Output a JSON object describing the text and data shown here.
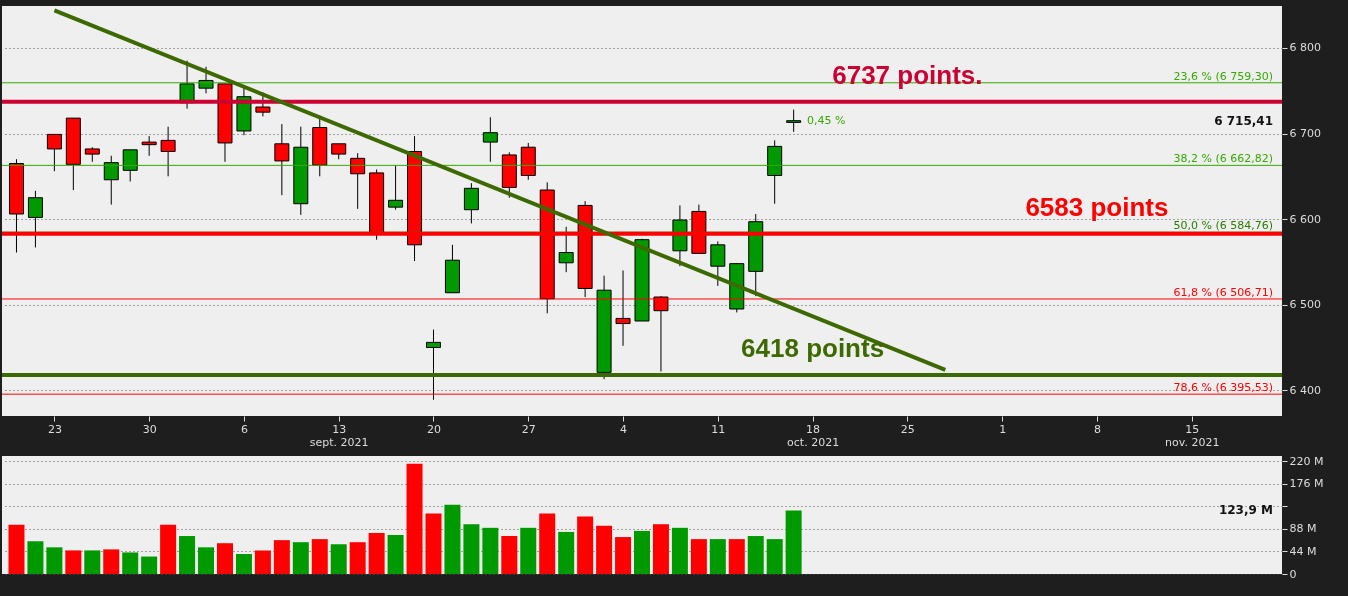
{
  "chart_data": [
    {
      "type": "candlestick",
      "categories": [
        null,
        null,
        "23",
        null,
        null,
        null,
        null,
        "30",
        null,
        null,
        null,
        null,
        "6",
        null,
        null,
        null,
        null,
        "13\nsept. 2021",
        null,
        null,
        null,
        null,
        "20",
        null,
        null,
        null,
        null,
        "27",
        null,
        null,
        null,
        null,
        "4",
        null,
        null,
        null,
        null,
        "11",
        null,
        null,
        null,
        null,
        "18\noct. 2021",
        null,
        null,
        null,
        null,
        "25",
        null,
        null,
        null,
        null,
        "1",
        null,
        null,
        null,
        null,
        "8",
        null,
        null,
        null,
        null,
        "15\nnov. 2021",
        null,
        null,
        null,
        null
      ],
      "ohlc": [
        [
          6665,
          6670,
          6561,
          6606
        ],
        [
          6602,
          6633,
          6567,
          6625
        ],
        [
          6699,
          6699,
          6656,
          6682
        ],
        [
          6718,
          6718,
          6634,
          6664
        ],
        [
          6682,
          6684,
          6667,
          6676
        ],
        [
          6646,
          6674,
          6617,
          6666
        ],
        [
          6657,
          6681,
          6644,
          6681
        ],
        [
          6690,
          6697,
          6674,
          6687
        ],
        [
          6692,
          6708,
          6650,
          6679
        ],
        [
          6736,
          6785,
          6729,
          6758
        ],
        [
          6753,
          6778,
          6747,
          6762
        ],
        [
          6758,
          6758,
          6667,
          6689
        ],
        [
          6703,
          6756,
          6698,
          6743
        ],
        [
          6731,
          6748,
          6720,
          6725
        ],
        [
          6688,
          6711,
          6628,
          6668
        ],
        [
          6618,
          6708,
          6605,
          6684
        ],
        [
          6707,
          6721,
          6650,
          6663
        ],
        [
          6688,
          6688,
          6670,
          6676
        ],
        [
          6671,
          6677,
          6612,
          6653
        ],
        [
          6654,
          6658,
          6576,
          6583
        ],
        [
          6614,
          6663,
          6611,
          6622
        ],
        [
          6679,
          6697,
          6551,
          6570
        ],
        [
          6450,
          6471,
          6389,
          6456
        ],
        [
          6514,
          6570,
          6514,
          6552
        ],
        [
          6611,
          6642,
          6595,
          6636
        ],
        [
          6690,
          6719,
          6667,
          6701
        ],
        [
          6675,
          6678,
          6625,
          6637
        ],
        [
          6684,
          6689,
          6646,
          6651
        ],
        [
          6634,
          6643,
          6490,
          6507
        ],
        [
          6549,
          6591,
          6538,
          6561
        ],
        [
          6616,
          6621,
          6509,
          6519
        ],
        [
          6421,
          6534,
          6413,
          6517
        ],
        [
          6484,
          6540,
          6452,
          6478
        ],
        [
          6481,
          6577,
          6481,
          6576
        ],
        [
          6509,
          6510,
          6422,
          6493
        ],
        [
          6563,
          6616,
          6545,
          6599
        ],
        [
          6609,
          6617,
          6560,
          6560
        ],
        [
          6545,
          6574,
          6522,
          6570
        ],
        [
          6495,
          6548,
          6491,
          6548
        ],
        [
          6539,
          6606,
          6510,
          6597
        ],
        [
          6651,
          6692,
          6618,
          6685
        ],
        [
          6713,
          6728,
          6702,
          6715
        ],
        null,
        null,
        null,
        null,
        null,
        null,
        null,
        null,
        null,
        null,
        null,
        null,
        null,
        null,
        null,
        null,
        null,
        null,
        null,
        null,
        null,
        null,
        null,
        null,
        null
      ],
      "colors": [
        "#ff0000",
        "#009900",
        "#ff0000",
        "#ff0000",
        "#ff0000",
        "#009900",
        "#009900",
        "#ff0000",
        "#ff0000",
        "#009900",
        "#009900",
        "#ff0000",
        "#009900",
        "#ff0000",
        "#ff0000",
        "#009900",
        "#ff0000",
        "#ff0000",
        "#ff0000",
        "#ff0000",
        "#009900",
        "#ff0000",
        "#009900",
        "#009900",
        "#009900",
        "#009900",
        "#ff0000",
        "#ff0000",
        "#ff0000",
        "#009900",
        "#ff0000",
        "#009900",
        "#ff0000",
        "#009900",
        "#ff0000",
        "#009900",
        "#ff0000",
        "#009900",
        "#009900",
        "#009900",
        "#009900",
        "#009900",
        null,
        null,
        null,
        null,
        null,
        null,
        null,
        null,
        null,
        null,
        null,
        null,
        null,
        null,
        null,
        null,
        null,
        null,
        null,
        null,
        null,
        null,
        null,
        null,
        null
      ],
      "series": [
        {
          "type": "line",
          "values": [
            null,
            null,
            6844,
            null,
            null,
            null,
            null,
            null,
            null,
            null,
            null,
            null,
            null,
            null,
            null,
            null,
            null,
            null,
            null,
            null,
            null,
            null,
            null,
            null,
            null,
            null,
            null,
            null,
            null,
            null,
            null,
            null,
            null,
            null,
            null,
            null,
            null,
            null,
            null,
            null,
            null,
            null,
            null,
            null,
            null,
            null,
            null,
            null,
            null,
            6424,
            null,
            null,
            null,
            null,
            null,
            null,
            null,
            null,
            null,
            null,
            null,
            null,
            null,
            null,
            null,
            null,
            null
          ],
          "color": "#3d6a00"
        }
      ],
      "ylim": [
        6370,
        6849
      ],
      "yticks": [
        {
          "value": 6400,
          "label": "6 400"
        },
        {
          "value": 6500,
          "label": "6 500"
        },
        {
          "value": 6600,
          "label": "6 600"
        },
        {
          "value": 6700,
          "label": "6 700"
        },
        {
          "value": 6800,
          "label": "6 800"
        }
      ],
      "grid": "y",
      "ref_lines": [
        {
          "axis": "y",
          "value": 6759.3,
          "label": "23,6 % (6 759,30)",
          "color": "#33aa00"
        },
        {
          "axis": "y",
          "value": 6662.82,
          "label": "38,2 % (6 662,82)",
          "color": "#33aa00"
        },
        {
          "axis": "y",
          "value": 6584.76,
          "label": "50,0 % (6 584,76)",
          "color": "#2a7a00"
        },
        {
          "axis": "y",
          "value": 6506.71,
          "label": "61,8 % (6 506,71)",
          "color": "#ff0000"
        },
        {
          "axis": "y",
          "value": 6395.53,
          "label": "78,6 % (6 395,53)",
          "color": "#ff0000"
        },
        {
          "axis": "y",
          "value": 6737,
          "color": "#cc0033"
        },
        {
          "axis": "y",
          "value": 6583,
          "color": "#ff0000"
        },
        {
          "axis": "y",
          "value": 6418,
          "color": "#3d6a00"
        }
      ],
      "annotations": [
        {
          "text": "6737 points.",
          "x": "25",
          "y": 6737
        },
        {
          "text": "6583 points",
          "x": "8",
          "y": 6583
        },
        {
          "text": "6418 points",
          "x": "18\noct. 2021",
          "y": 6418
        },
        "0,45 %",
        "6 715,41"
      ]
    },
    {
      "type": "bar",
      "categories": [
        null,
        null,
        null,
        null,
        null,
        null,
        null,
        null,
        null,
        null,
        null,
        null,
        null,
        null,
        null,
        null,
        null,
        null,
        null,
        null,
        null,
        null,
        null,
        null,
        null,
        null,
        null,
        null,
        null,
        null,
        null,
        null,
        null,
        null,
        null,
        null,
        null,
        null,
        null,
        null,
        null,
        null,
        null,
        null,
        null,
        null,
        null,
        null,
        null,
        null,
        null,
        null,
        null,
        null,
        null,
        null,
        null,
        null,
        null,
        null,
        null,
        null,
        null,
        null,
        null,
        null,
        null
      ],
      "values": [
        96,
        64,
        52,
        46,
        46,
        48,
        42,
        34,
        96,
        74,
        52,
        60,
        39,
        46,
        66,
        62,
        68,
        58,
        62,
        80,
        76,
        215,
        118,
        135,
        97,
        90,
        74,
        90,
        118,
        82,
        112,
        94,
        72,
        84,
        97,
        90,
        68,
        68,
        68,
        74,
        68,
        124,
        null,
        null,
        null,
        null,
        null,
        null,
        null,
        null,
        null,
        null,
        null,
        null,
        null,
        null,
        null,
        null,
        null,
        null,
        null,
        null,
        null,
        null,
        null,
        null,
        null
      ],
      "colors": [
        "#ff0000",
        "#009900",
        "#009900",
        "#ff0000",
        "#009900",
        "#ff0000",
        "#009900",
        "#009900",
        "#ff0000",
        "#009900",
        "#009900",
        "#ff0000",
        "#009900",
        "#ff0000",
        "#ff0000",
        "#009900",
        "#ff0000",
        "#009900",
        "#ff0000",
        "#ff0000",
        "#009900",
        "#ff0000",
        "#ff0000",
        "#009900",
        "#009900",
        "#009900",
        "#ff0000",
        "#009900",
        "#ff0000",
        "#009900",
        "#ff0000",
        "#ff0000",
        "#ff0000",
        "#009900",
        "#ff0000",
        "#009900",
        "#ff0000",
        "#009900",
        "#ff0000",
        "#009900",
        "#009900",
        "#009900",
        null,
        null,
        null,
        null,
        null,
        null,
        null,
        null,
        null,
        null,
        null,
        null,
        null,
        null,
        null,
        null,
        null,
        null,
        null,
        null,
        null,
        null,
        null,
        null,
        null
      ],
      "ylim": [
        0,
        230
      ],
      "yticks": [
        0,
        {
          "value": 44,
          "label": "44 M"
        },
        {
          "value": 88,
          "label": "88 M"
        },
        {
          "value": 132,
          "label": null
        },
        {
          "value": 176,
          "label": "176 M"
        },
        {
          "value": 220,
          "label": "220 M"
        }
      ],
      "grid": "y",
      "tick_labels": "y",
      "annotations": [
        "123,9 M"
      ]
    }
  ]
}
